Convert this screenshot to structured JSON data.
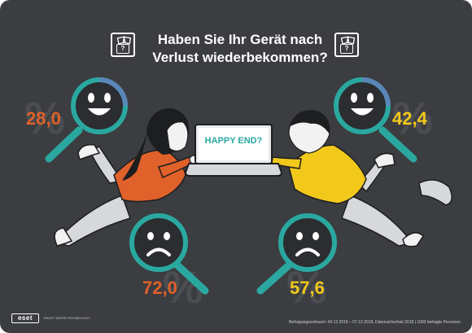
{
  "title": {
    "line1": "Haben Sie Ihr Gerät nach",
    "line2": "Verlust wiederbekommen?"
  },
  "icons": {
    "left_box": "question-box-icon",
    "right_box": "question-box-icon",
    "question_mark": "?"
  },
  "stats": {
    "happy_left": "28,0",
    "happy_right": "42,4",
    "sad_left": "72,0",
    "sad_right": "57,6",
    "percent_sign": "%"
  },
  "laptop": {
    "screen_text": "HAPPY END?"
  },
  "footer": {
    "logo": "eset",
    "tagline": "ENJOY SAFER TECHNOLOGY",
    "source": "Befragungszeitraum: 04.12.2018 – 07.12.2018, Datensicherheit 2018  |  1000 befragte Personen"
  },
  "colors": {
    "background": "#3b3d40",
    "teal": "#2aa8a0",
    "orange": "#e0612a",
    "yellow": "#f2c91b",
    "light_gray": "#d6d8dc"
  }
}
